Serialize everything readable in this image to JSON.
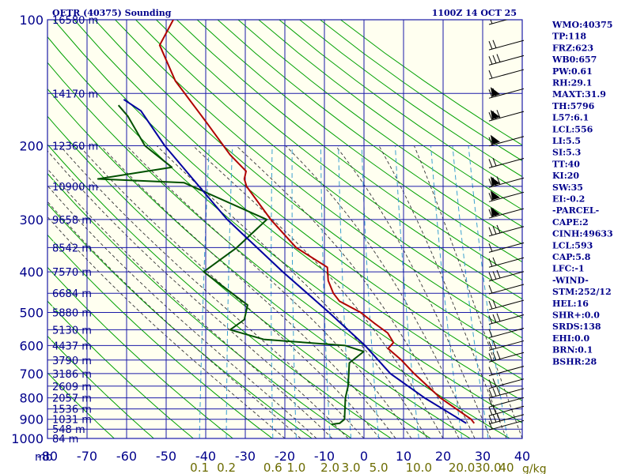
{
  "header": {
    "station": "OETR (40375) Sounding",
    "time": "1100Z 14 OCT 25"
  },
  "axis": {
    "unit_label": "mb",
    "mixing_ratio_unit": "g/kg"
  },
  "colors": {
    "plot_bg": "#fffff0",
    "grid": "#1a1aa8",
    "dry_adiabat": "#00a000",
    "moist_adiabat": "#333333",
    "mixing_ratio": "#3aa0d0",
    "temperature": "#b00000",
    "dewpoint": "#005000",
    "parcel": "#0000a0",
    "text": "#00008b",
    "mixing_text": "#6b6b00",
    "wind_barb": "#000000"
  },
  "chart_data": {
    "type": "line",
    "chart_kind": "skew-t log-p sounding",
    "y_scale": "log",
    "ylim": [
      1000,
      100
    ],
    "xlim": [
      -80,
      40
    ],
    "pressure_ticks": [
      100,
      200,
      300,
      400,
      500,
      600,
      700,
      800,
      900,
      1000
    ],
    "temperature_ticks": [
      -80,
      -70,
      -60,
      -50,
      -40,
      -30,
      -20,
      -10,
      0,
      10,
      20,
      30,
      40
    ],
    "temperature_tick_labels": [
      "-80",
      "-70",
      "-60",
      "-50",
      "-40",
      "-30",
      "-20",
      "-10",
      "0",
      "10",
      "20",
      "30",
      "40"
    ],
    "pressure_labels": [
      {
        "p": 100,
        "label": "100"
      },
      {
        "p": 200,
        "label": "200"
      },
      {
        "p": 300,
        "label": "300"
      },
      {
        "p": 400,
        "label": "400"
      },
      {
        "p": 500,
        "label": "500"
      },
      {
        "p": 600,
        "label": "600"
      },
      {
        "p": 700,
        "label": "700"
      },
      {
        "p": 800,
        "label": "800"
      },
      {
        "p": 900,
        "label": "900"
      },
      {
        "p": 1000,
        "label": "1000"
      }
    ],
    "height_labels": [
      {
        "p": 100,
        "label": "16580 m"
      },
      {
        "p": 150,
        "label": "14170 m"
      },
      {
        "p": 200,
        "label": "12360 m"
      },
      {
        "p": 250,
        "label": "10900 m"
      },
      {
        "p": 300,
        "label": "9658 m"
      },
      {
        "p": 350,
        "label": "8542 m"
      },
      {
        "p": 400,
        "label": "7570 m"
      },
      {
        "p": 450,
        "label": "6684 m"
      },
      {
        "p": 500,
        "label": "5880 m"
      },
      {
        "p": 550,
        "label": "5130 m"
      },
      {
        "p": 600,
        "label": "4437 m"
      },
      {
        "p": 650,
        "label": "3790 m"
      },
      {
        "p": 700,
        "label": "3186 m"
      },
      {
        "p": 750,
        "label": "2609 m"
      },
      {
        "p": 800,
        "label": "2057 m"
      },
      {
        "p": 850,
        "label": "1536 m"
      },
      {
        "p": 900,
        "label": "1031 m"
      },
      {
        "p": 950,
        "label": "548 m"
      },
      {
        "p": 1000,
        "label": "84 m"
      }
    ],
    "mixing_ratio_labels": [
      "0.1",
      "0.2",
      "0.6",
      "1.0",
      "2.0",
      "3.0",
      "5.0",
      "10.0",
      "20.0",
      "30.0",
      "40"
    ],
    "mixing_ratio_values": [
      0.1,
      0.2,
      0.6,
      1.0,
      2.0,
      3.0,
      5.0,
      10.0,
      20.0,
      30.0,
      40
    ],
    "series": [
      {
        "kind": "temperature",
        "points": [
          {
            "p": 100,
            "t": -72
          },
          {
            "p": 115,
            "t": -74
          },
          {
            "p": 140,
            "t": -68
          },
          {
            "p": 175,
            "t": -58
          },
          {
            "p": 210,
            "t": -50
          },
          {
            "p": 230,
            "t": -45
          },
          {
            "p": 240,
            "t": -45
          },
          {
            "p": 250,
            "t": -44
          },
          {
            "p": 300,
            "t": -36
          },
          {
            "p": 350,
            "t": -28
          },
          {
            "p": 390,
            "t": -19
          },
          {
            "p": 420,
            "t": -18
          },
          {
            "p": 450,
            "t": -16
          },
          {
            "p": 470,
            "t": -14
          },
          {
            "p": 500,
            "t": -8
          },
          {
            "p": 530,
            "t": -4
          },
          {
            "p": 560,
            "t": 0
          },
          {
            "p": 590,
            "t": 2
          },
          {
            "p": 610,
            "t": 1
          },
          {
            "p": 650,
            "t": 5
          },
          {
            "p": 700,
            "t": 9
          },
          {
            "p": 800,
            "t": 17
          },
          {
            "p": 900,
            "t": 26
          },
          {
            "p": 920,
            "t": 27
          }
        ]
      },
      {
        "kind": "dewpoint",
        "points": [
          {
            "p": 160,
            "t": -81
          },
          {
            "p": 170,
            "t": -78
          },
          {
            "p": 200,
            "t": -72
          },
          {
            "p": 225,
            "t": -64
          },
          {
            "p": 240,
            "t": -82
          },
          {
            "p": 245,
            "t": -60
          },
          {
            "p": 300,
            "t": -37
          },
          {
            "p": 350,
            "t": -43
          },
          {
            "p": 400,
            "t": -50
          },
          {
            "p": 480,
            "t": -37
          },
          {
            "p": 520,
            "t": -37
          },
          {
            "p": 550,
            "t": -40
          },
          {
            "p": 580,
            "t": -31
          },
          {
            "p": 600,
            "t": -10
          },
          {
            "p": 620,
            "t": -5
          },
          {
            "p": 660,
            "t": -8
          },
          {
            "p": 750,
            "t": -7
          },
          {
            "p": 800,
            "t": -7
          },
          {
            "p": 900,
            "t": -6
          },
          {
            "p": 920,
            "t": -7
          },
          {
            "p": 925,
            "t": -9
          }
        ]
      },
      {
        "kind": "parcel",
        "points": [
          {
            "p": 920,
            "t": 25
          },
          {
            "p": 800,
            "t": 13
          },
          {
            "p": 700,
            "t": 3
          },
          {
            "p": 600,
            "t": -5
          },
          {
            "p": 500,
            "t": -16
          },
          {
            "p": 400,
            "t": -30
          },
          {
            "p": 300,
            "t": -47
          },
          {
            "p": 250,
            "t": -56
          },
          {
            "p": 200,
            "t": -67
          },
          {
            "p": 165,
            "t": -75
          },
          {
            "p": 155,
            "t": -80
          }
        ]
      }
    ],
    "wind_barbs": [
      {
        "p": 100
      },
      {
        "p": 115
      },
      {
        "p": 125
      },
      {
        "p": 135
      },
      {
        "p": 150
      },
      {
        "p": 170
      },
      {
        "p": 195
      },
      {
        "p": 220
      },
      {
        "p": 245
      },
      {
        "p": 265
      },
      {
        "p": 290
      },
      {
        "p": 320
      },
      {
        "p": 350
      },
      {
        "p": 380
      },
      {
        "p": 410
      },
      {
        "p": 440
      },
      {
        "p": 480
      },
      {
        "p": 520
      },
      {
        "p": 560
      },
      {
        "p": 600
      },
      {
        "p": 640
      },
      {
        "p": 690
      },
      {
        "p": 740
      },
      {
        "p": 780
      },
      {
        "p": 820
      },
      {
        "p": 860
      },
      {
        "p": 900
      },
      {
        "p": 930
      }
    ]
  },
  "stats": [
    {
      "key": "WMO",
      "value": "40375",
      "text": "WMO:40375"
    },
    {
      "key": "TP",
      "value": "118",
      "text": "TP:118"
    },
    {
      "key": "FRZ",
      "value": "623",
      "text": "FRZ:623"
    },
    {
      "key": "WB0",
      "value": "657",
      "text": "WB0:657"
    },
    {
      "key": "PW",
      "value": "0.61",
      "text": "PW:0.61"
    },
    {
      "key": "RH",
      "value": "29.1",
      "text": "RH:29.1"
    },
    {
      "key": "MAXT",
      "value": "31.9",
      "text": "MAXT:31.9"
    },
    {
      "key": "TH",
      "value": "5796",
      "text": "TH:5796"
    },
    {
      "key": "L57",
      "value": "6.1",
      "text": "L57:6.1"
    },
    {
      "key": "LCL",
      "value": "556",
      "text": "LCL:556"
    },
    {
      "key": "LI",
      "value": "5.5",
      "text": "LI:5.5"
    },
    {
      "key": "SI",
      "value": "5.3",
      "text": "SI:5.3"
    },
    {
      "key": "TT",
      "value": "40",
      "text": "TT:40"
    },
    {
      "key": "KI",
      "value": "20",
      "text": "KI:20"
    },
    {
      "key": "SW",
      "value": "35",
      "text": "SW:35"
    },
    {
      "key": "EI",
      "value": "-0.2",
      "text": "EI:-0.2"
    },
    {
      "key": "section",
      "value": "PARCEL",
      "text": "-PARCEL-"
    },
    {
      "key": "CAPE",
      "value": "2",
      "text": "CAPE:2"
    },
    {
      "key": "CINH",
      "value": "49633",
      "text": "CINH:49633"
    },
    {
      "key": "LCL",
      "value": "593",
      "text": "LCL:593"
    },
    {
      "key": "CAP",
      "value": "5.8",
      "text": "CAP:5.8"
    },
    {
      "key": "LFC",
      "value": "-1",
      "text": "LFC:-1"
    },
    {
      "key": "section",
      "value": "WIND",
      "text": "-WIND-"
    },
    {
      "key": "STM",
      "value": "252/12",
      "text": "STM:252/12"
    },
    {
      "key": "HEL",
      "value": "16",
      "text": "HEL:16"
    },
    {
      "key": "SHR+",
      "value": "0.0",
      "text": "SHR+:0.0"
    },
    {
      "key": "SRDS",
      "value": "138",
      "text": "SRDS:138"
    },
    {
      "key": "EHI",
      "value": "0.0",
      "text": "EHI:0.0"
    },
    {
      "key": "BRN",
      "value": "0.1",
      "text": "BRN:0.1"
    },
    {
      "key": "BSHR",
      "value": "28",
      "text": "BSHR:28"
    }
  ]
}
